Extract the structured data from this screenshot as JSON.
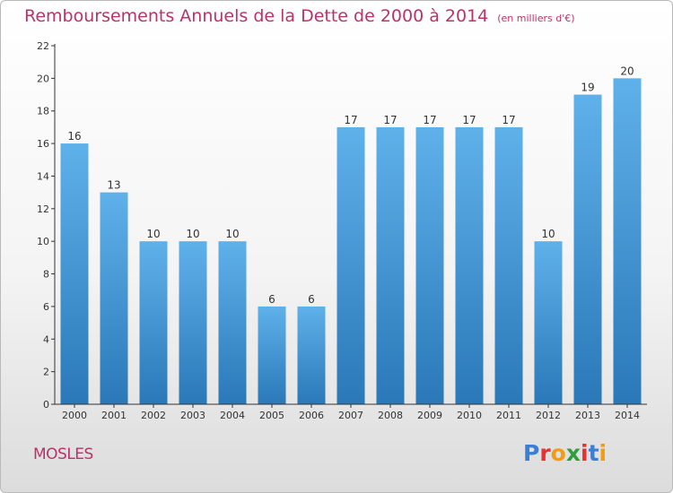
{
  "header": {
    "title": "Remboursements Annuels de la Dette de 2000 à 2014",
    "subtitle": "(en milliers d'€)"
  },
  "footer": {
    "commune": "MOSLES",
    "logo": "Proxiti",
    "logo_colors": [
      "#3a7fd5",
      "#e8322d",
      "#f39c12",
      "#2e9e3e",
      "#e8322d",
      "#3a7fd5",
      "#f39c12"
    ]
  },
  "colors": {
    "accent": "#b8336a",
    "bar_top": "#5fb1ea",
    "bar_bottom": "#2a78b8",
    "axis": "#333333"
  },
  "chart_data": {
    "type": "bar",
    "title": "Remboursements Annuels de la Dette de 2000 à 2014",
    "xlabel": "",
    "ylabel": "",
    "categories": [
      "2000",
      "2001",
      "2002",
      "2003",
      "2004",
      "2005",
      "2006",
      "2007",
      "2008",
      "2009",
      "2010",
      "2011",
      "2012",
      "2013",
      "2014"
    ],
    "values": [
      16,
      13,
      10,
      10,
      10,
      6,
      6,
      17,
      17,
      17,
      17,
      17,
      10,
      19,
      20
    ],
    "ylim": [
      0,
      22
    ],
    "yticks": [
      0,
      2,
      4,
      6,
      8,
      10,
      12,
      14,
      16,
      18,
      20,
      22
    ],
    "grid": false,
    "data_labels": true
  }
}
